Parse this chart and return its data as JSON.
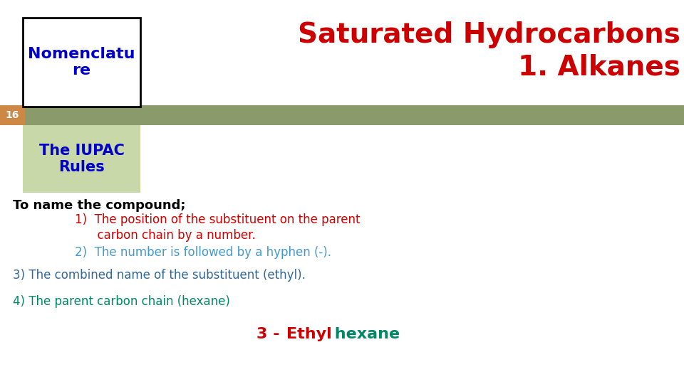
{
  "bg_color": "#ffffff",
  "slide_number": "16",
  "title_line1": "Saturated Hydrocarbons",
  "title_line2": "1. Alkanes",
  "title_color": "#cc0000",
  "nom_text": "Nomenclatu\nre",
  "nom_color": "#0000cc",
  "nom_fill": "#ffffff",
  "nom_border": "#000000",
  "iupac_text": "The IUPAC\nRules",
  "iupac_color": "#0000cc",
  "iupac_fill": "#c8d8a8",
  "subtitle_text": "To name the compound;",
  "subtitle_color": "#000000",
  "point1_line1": "1)  The position of the substituent on the parent",
  "point1_line2": "      carbon chain by a number.",
  "point1_color": "#cc0000",
  "point2_text": "2)  The number is followed by a hyphen (-).",
  "point2_color": "#4499cc",
  "point3_text": "3) The combined name of the substituent (ethyl).",
  "point3_color": "#336699",
  "point4_text": "4) The parent carbon chain (hexane)",
  "point4_color": "#008866",
  "bottom_3": "3 - ",
  "bottom_ethyl": "Ethyl",
  "bottom_hexane": " hexane",
  "bottom_color_3": "#cc0000",
  "bottom_color_ethyl": "#cc0000",
  "bottom_color_hexane": "#008866",
  "bar_color": "#8a9a6a",
  "bar_left_color": "#cc8844",
  "slide_num_color": "#ffffff"
}
